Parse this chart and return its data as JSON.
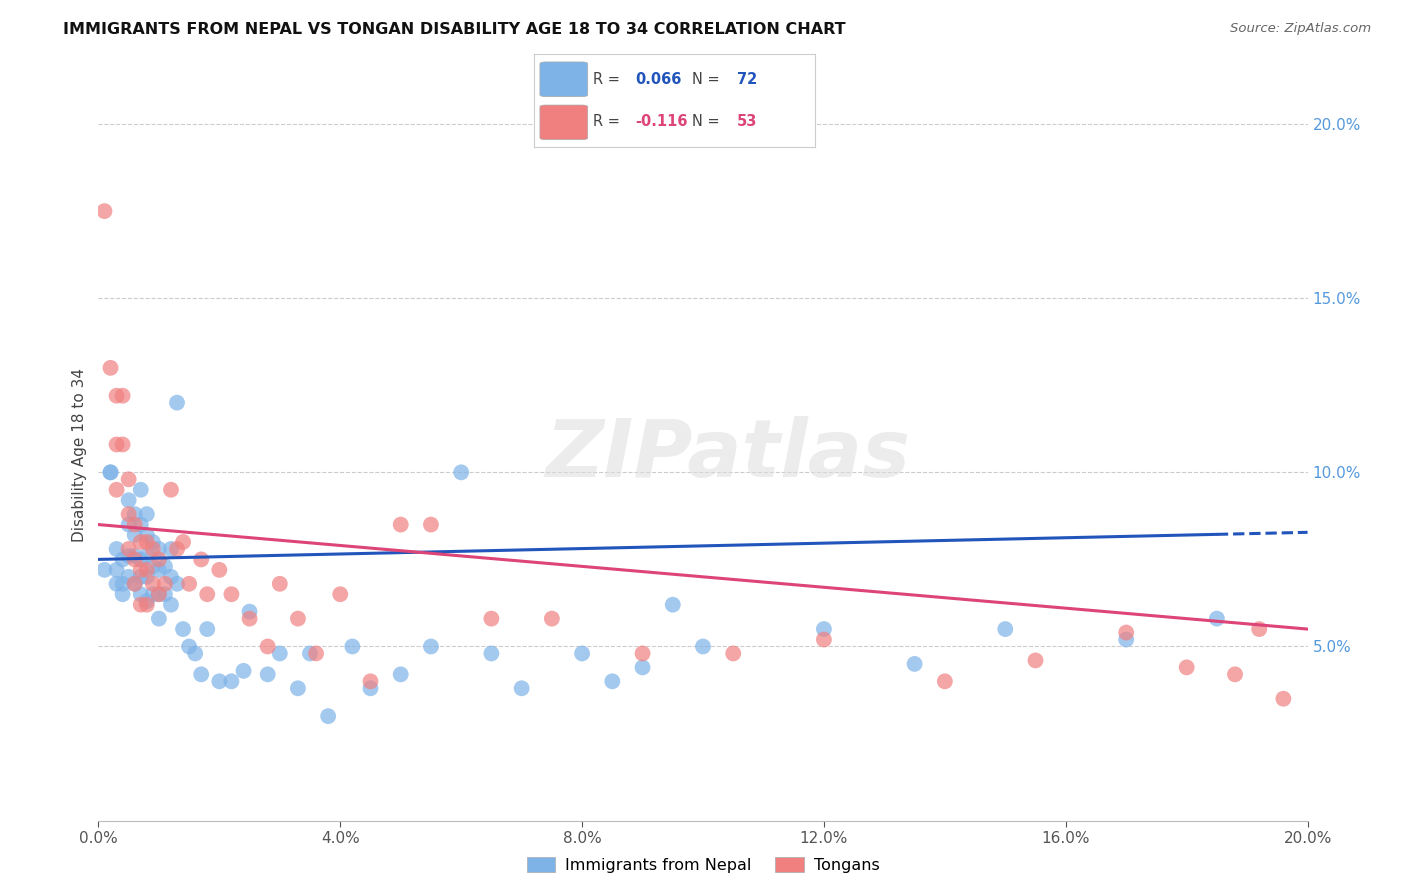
{
  "title": "IMMIGRANTS FROM NEPAL VS TONGAN DISABILITY AGE 18 TO 34 CORRELATION CHART",
  "source": "Source: ZipAtlas.com",
  "ylabel": "Disability Age 18 to 34",
  "xlim": [
    0.0,
    0.2
  ],
  "ylim": [
    0.0,
    0.21
  ],
  "x_ticks": [
    0.0,
    0.04,
    0.08,
    0.12,
    0.16,
    0.2
  ],
  "y_ticks": [
    0.05,
    0.1,
    0.15,
    0.2
  ],
  "y_tick_labels": [
    "5.0%",
    "10.0%",
    "15.0%",
    "20.0%"
  ],
  "x_tick_labels": [
    "0.0%",
    "4.0%",
    "8.0%",
    "12.0%",
    "16.0%",
    "20.0%"
  ],
  "nepal_R": 0.066,
  "nepal_N": 72,
  "tongan_R": -0.116,
  "tongan_N": 53,
  "nepal_color": "#7EB3E8",
  "tongan_color": "#F08080",
  "nepal_line_color": "#2255BB",
  "tongan_line_color": "#DD4477",
  "background_color": "#FFFFFF",
  "watermark": "ZIPatlas",
  "nepal_x": [
    0.001,
    0.002,
    0.002,
    0.003,
    0.003,
    0.003,
    0.004,
    0.004,
    0.004,
    0.005,
    0.005,
    0.005,
    0.005,
    0.006,
    0.006,
    0.006,
    0.006,
    0.007,
    0.007,
    0.007,
    0.007,
    0.007,
    0.008,
    0.008,
    0.008,
    0.008,
    0.008,
    0.009,
    0.009,
    0.009,
    0.01,
    0.01,
    0.01,
    0.01,
    0.011,
    0.011,
    0.012,
    0.012,
    0.012,
    0.013,
    0.013,
    0.014,
    0.015,
    0.016,
    0.017,
    0.018,
    0.02,
    0.022,
    0.024,
    0.025,
    0.028,
    0.03,
    0.033,
    0.035,
    0.038,
    0.042,
    0.045,
    0.05,
    0.055,
    0.06,
    0.065,
    0.07,
    0.08,
    0.085,
    0.09,
    0.095,
    0.1,
    0.12,
    0.135,
    0.15,
    0.17,
    0.185
  ],
  "nepal_y": [
    0.072,
    0.1,
    0.1,
    0.078,
    0.072,
    0.068,
    0.075,
    0.068,
    0.065,
    0.092,
    0.085,
    0.076,
    0.07,
    0.088,
    0.082,
    0.076,
    0.068,
    0.095,
    0.085,
    0.075,
    0.07,
    0.065,
    0.088,
    0.082,
    0.076,
    0.07,
    0.063,
    0.08,
    0.073,
    0.065,
    0.078,
    0.072,
    0.065,
    0.058,
    0.073,
    0.065,
    0.078,
    0.07,
    0.062,
    0.12,
    0.068,
    0.055,
    0.05,
    0.048,
    0.042,
    0.055,
    0.04,
    0.04,
    0.043,
    0.06,
    0.042,
    0.048,
    0.038,
    0.048,
    0.03,
    0.05,
    0.038,
    0.042,
    0.05,
    0.1,
    0.048,
    0.038,
    0.048,
    0.04,
    0.044,
    0.062,
    0.05,
    0.055,
    0.045,
    0.055,
    0.052,
    0.058
  ],
  "tongan_x": [
    0.001,
    0.002,
    0.003,
    0.003,
    0.003,
    0.004,
    0.004,
    0.005,
    0.005,
    0.005,
    0.006,
    0.006,
    0.006,
    0.007,
    0.007,
    0.007,
    0.008,
    0.008,
    0.008,
    0.009,
    0.009,
    0.01,
    0.01,
    0.011,
    0.012,
    0.013,
    0.014,
    0.015,
    0.017,
    0.018,
    0.02,
    0.022,
    0.025,
    0.028,
    0.03,
    0.033,
    0.036,
    0.04,
    0.045,
    0.05,
    0.055,
    0.065,
    0.075,
    0.09,
    0.105,
    0.12,
    0.14,
    0.155,
    0.17,
    0.18,
    0.188,
    0.192,
    0.196
  ],
  "tongan_y": [
    0.175,
    0.13,
    0.122,
    0.108,
    0.095,
    0.122,
    0.108,
    0.098,
    0.088,
    0.078,
    0.085,
    0.075,
    0.068,
    0.08,
    0.072,
    0.062,
    0.08,
    0.072,
    0.062,
    0.078,
    0.068,
    0.075,
    0.065,
    0.068,
    0.095,
    0.078,
    0.08,
    0.068,
    0.075,
    0.065,
    0.072,
    0.065,
    0.058,
    0.05,
    0.068,
    0.058,
    0.048,
    0.065,
    0.04,
    0.085,
    0.085,
    0.058,
    0.058,
    0.048,
    0.048,
    0.052,
    0.04,
    0.046,
    0.054,
    0.044,
    0.042,
    0.055,
    0.035
  ]
}
